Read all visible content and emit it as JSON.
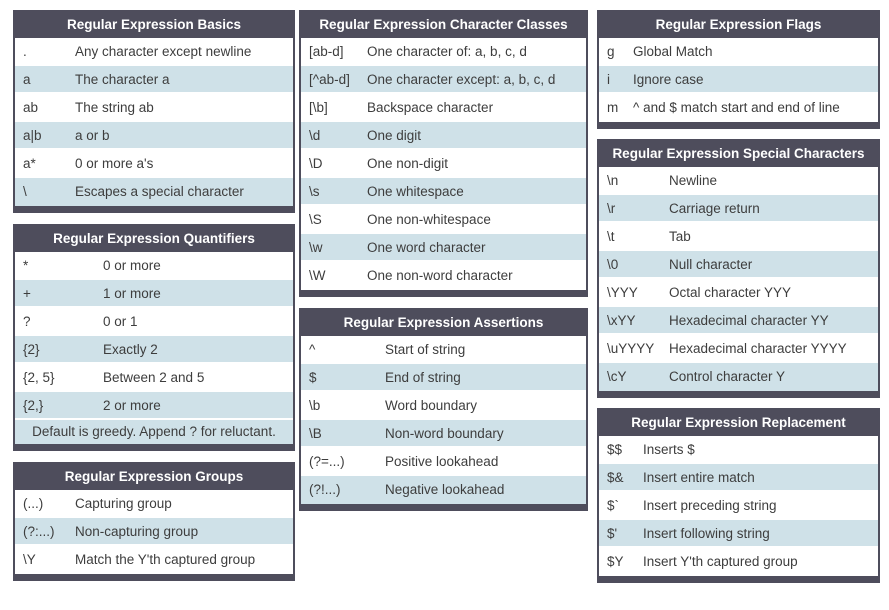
{
  "colors": {
    "header_bg": "#4e4d5c",
    "row_alt_bg": "#cfe1e8",
    "row_bg": "#ffffff",
    "body_text": "#3d3d3d",
    "header_text": "#ffffff"
  },
  "tables": {
    "basics": {
      "title": "Regular Expression Basics",
      "rows": [
        {
          "symbol": ".",
          "description": "Any character except newline"
        },
        {
          "symbol": "a",
          "description": "The character a"
        },
        {
          "symbol": "ab",
          "description": "The string ab"
        },
        {
          "symbol": "a|b",
          "description": "a or b"
        },
        {
          "symbol": "a*",
          "description": "0 or more a's"
        },
        {
          "symbol": "\\",
          "description": "Escapes a special character"
        }
      ]
    },
    "quantifiers": {
      "title": "Regular Expression Quantifiers",
      "rows": [
        {
          "symbol": "*",
          "description": "0 or more"
        },
        {
          "symbol": "+",
          "description": "1 or more"
        },
        {
          "symbol": "?",
          "description": "0 or 1"
        },
        {
          "symbol": "{2}",
          "description": "Exactly 2"
        },
        {
          "symbol": "{2, 5}",
          "description": "Between 2 and 5"
        },
        {
          "symbol": "{2,}",
          "description": "2 or more"
        }
      ],
      "footer": "Default is greedy. Append ? for reluctant."
    },
    "groups": {
      "title": "Regular Expression Groups",
      "rows": [
        {
          "symbol": "(...)",
          "description": "Capturing group"
        },
        {
          "symbol": "(?:...)",
          "description": "Non-capturing group"
        },
        {
          "symbol": "\\Y",
          "description": "Match the Y'th captured group"
        }
      ]
    },
    "character_classes": {
      "title": "Regular Expression Character Classes",
      "rows": [
        {
          "symbol": "[ab-d]",
          "description": "One character of: a, b, c, d"
        },
        {
          "symbol": "[^ab-d]",
          "description": "One character except: a, b, c, d"
        },
        {
          "symbol": "[\\b]",
          "description": "Backspace character"
        },
        {
          "symbol": "\\d",
          "description": "One digit"
        },
        {
          "symbol": "\\D",
          "description": "One non-digit"
        },
        {
          "symbol": "\\s",
          "description": "One whitespace"
        },
        {
          "symbol": "\\S",
          "description": "One non-whitespace"
        },
        {
          "symbol": "\\w",
          "description": "One word character"
        },
        {
          "symbol": "\\W",
          "description": "One non-word character"
        }
      ]
    },
    "assertions": {
      "title": "Regular Expression Assertions",
      "rows": [
        {
          "symbol": "^",
          "description": "Start of string"
        },
        {
          "symbol": "$",
          "description": "End of string"
        },
        {
          "symbol": "\\b",
          "description": "Word boundary"
        },
        {
          "symbol": "\\B",
          "description": "Non-word boundary"
        },
        {
          "symbol": "(?=...)",
          "description": "Positive lookahead"
        },
        {
          "symbol": "(?!...)",
          "description": "Negative lookahead"
        }
      ]
    },
    "flags": {
      "title": "Regular Expression Flags",
      "rows": [
        {
          "symbol": "g",
          "description": "Global Match"
        },
        {
          "symbol": "i",
          "description": "Ignore case"
        },
        {
          "symbol": "m",
          "description": "^ and $ match start and end of line"
        }
      ]
    },
    "special_characters": {
      "title": "Regular Expression Special Characters",
      "rows": [
        {
          "symbol": "\\n",
          "description": "Newline"
        },
        {
          "symbol": "\\r",
          "description": "Carriage return"
        },
        {
          "symbol": "\\t",
          "description": "Tab"
        },
        {
          "symbol": "\\0",
          "description": "Null character"
        },
        {
          "symbol": "\\YYY",
          "description": "Octal character YYY"
        },
        {
          "symbol": "\\xYY",
          "description": "Hexadecimal character YY"
        },
        {
          "symbol": "\\uYYYY",
          "description": "Hexadecimal character YYYY"
        },
        {
          "symbol": "\\cY",
          "description": "Control character Y"
        }
      ]
    },
    "replacement": {
      "title": "Regular Expression Replacement",
      "rows": [
        {
          "symbol": "$$",
          "description": "Inserts $"
        },
        {
          "symbol": "$&",
          "description": "Insert entire match"
        },
        {
          "symbol": "$`",
          "description": "Insert preceding string"
        },
        {
          "symbol": "$'",
          "description": "Insert following string"
        },
        {
          "symbol": "$Y",
          "description": "Insert Y'th captured group"
        }
      ]
    }
  },
  "columns": [
    [
      "basics",
      "quantifiers",
      "groups"
    ],
    [
      "character_classes",
      "assertions"
    ],
    [
      "flags",
      "special_characters",
      "replacement"
    ]
  ]
}
